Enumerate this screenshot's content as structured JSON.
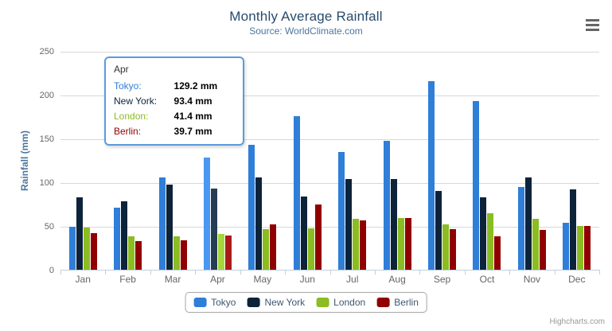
{
  "header": {
    "title": "Monthly Average Rainfall",
    "subtitle": "Source: WorldClimate.com"
  },
  "chart_data": {
    "type": "bar",
    "title": "Monthly Average Rainfall",
    "subtitle": "Source: WorldClimate.com",
    "categories": [
      "Jan",
      "Feb",
      "Mar",
      "Apr",
      "May",
      "Jun",
      "Jul",
      "Aug",
      "Sep",
      "Oct",
      "Nov",
      "Dec"
    ],
    "series": [
      {
        "name": "Tokyo",
        "color": "#2f7ed8",
        "hover_color": "#4998f2",
        "values": [
          49.9,
          71.5,
          106.4,
          129.2,
          144.0,
          176.0,
          135.6,
          148.5,
          216.4,
          194.1,
          95.6,
          54.4
        ]
      },
      {
        "name": "New York",
        "color": "#0d233a",
        "hover_color": "#273d54",
        "values": [
          83.6,
          78.8,
          98.5,
          93.4,
          106.0,
          84.5,
          105.0,
          104.3,
          91.2,
          83.5,
          106.6,
          92.3
        ]
      },
      {
        "name": "London",
        "color": "#8bbc21",
        "hover_color": "#a5d63b",
        "values": [
          48.9,
          38.8,
          39.3,
          41.4,
          47.0,
          48.3,
          59.0,
          59.6,
          52.4,
          65.2,
          59.3,
          51.2
        ]
      },
      {
        "name": "Berlin",
        "color": "#910000",
        "hover_color": "#ab1a1a",
        "values": [
          42.4,
          33.2,
          34.5,
          39.7,
          52.6,
          75.5,
          57.4,
          60.4,
          47.6,
          39.1,
          46.8,
          51.1
        ]
      }
    ],
    "xlabel": "",
    "ylabel": "Rainfall (mm)",
    "ylim": [
      0,
      250
    ],
    "y_ticks": [
      0,
      50,
      100,
      150,
      200,
      250
    ],
    "grid": true,
    "legend_position": "bottom",
    "hovered_category": "Apr",
    "value_unit": "mm"
  },
  "tooltip": {
    "header": "Apr",
    "unit": "mm",
    "rows": [
      {
        "name": "Tokyo",
        "value": "129.2",
        "color": "#2f7ed8"
      },
      {
        "name": "New York",
        "value": "93.4",
        "color": "#0d233a"
      },
      {
        "name": "London",
        "value": "41.4",
        "color": "#8bbc21"
      },
      {
        "name": "Berlin",
        "value": "39.7",
        "color": "#910000"
      }
    ]
  },
  "credits": {
    "label": "Highcharts.com"
  },
  "icons": {
    "export_menu": "hamburger-icon"
  },
  "colors": {
    "title": "#274b6d",
    "subtitle": "#4d759e",
    "axis_title": "#4d759e",
    "axis_labels": "#666666",
    "gridline": "#d8d8d8",
    "axis_line": "#c0d0e0",
    "tooltip_border": "#5b9cde",
    "legend_border": "#aaaaaa",
    "legend_text": "#3e576f",
    "credits_text": "#999999"
  }
}
